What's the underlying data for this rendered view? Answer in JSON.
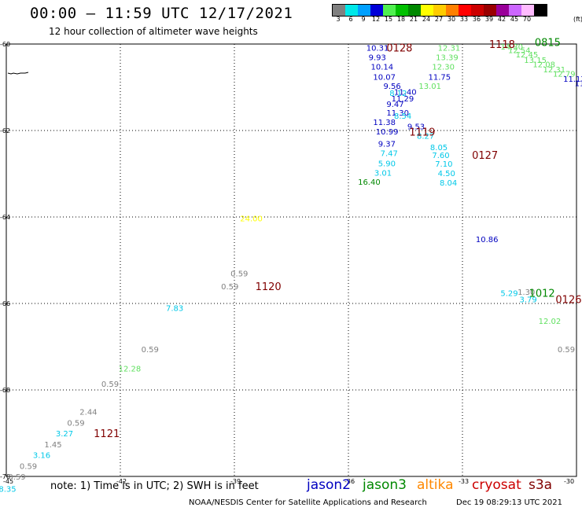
{
  "header": {
    "title": "00:00 — 11:59 UTC 12/17/2021",
    "subtitle": "12 hour collection of altimeter wave heights"
  },
  "legend": {
    "unit": "(ft)",
    "bins": [
      {
        "label": "3",
        "color": "#808080"
      },
      {
        "label": "6",
        "color": "#00e8e8"
      },
      {
        "label": "9",
        "color": "#00a0ff"
      },
      {
        "label": "12",
        "color": "#0000d8"
      },
      {
        "label": "15",
        "color": "#50f050"
      },
      {
        "label": "18",
        "color": "#00c000"
      },
      {
        "label": "21",
        "color": "#008800"
      },
      {
        "label": "24",
        "color": "#ffff00"
      },
      {
        "label": "27",
        "color": "#ffcc00"
      },
      {
        "label": "30",
        "color": "#ff8000"
      },
      {
        "label": "33",
        "color": "#ff0000"
      },
      {
        "label": "36",
        "color": "#cc0000"
      },
      {
        "label": "39",
        "color": "#990000"
      },
      {
        "label": "42",
        "color": "#990099"
      },
      {
        "label": "45",
        "color": "#cc66ff"
      },
      {
        "label": "70",
        "color": "#ffbbff"
      },
      {
        "label": "",
        "color": "#000000"
      }
    ]
  },
  "chart_data": {
    "type": "scatter",
    "title": "00:00 — 11:59 UTC 12/17/2021",
    "subtitle": "12 hour collection of altimeter wave heights",
    "xlim": [
      -45,
      -30
    ],
    "ylim": [
      -70,
      -60
    ],
    "x_ticks": [
      "-45",
      "-42",
      "-39",
      "-36",
      "-33",
      "-30"
    ],
    "y_ticks": [
      "-60",
      "-62",
      "-64",
      "-66",
      "-68",
      "-70"
    ],
    "grid": true,
    "colors": {
      "gray": "#808080",
      "cyan": "#00c8e8",
      "blue": "#0000c0",
      "lightgreen": "#60e060",
      "green": "#008800",
      "yellow": "#ffff00",
      "darkred": "#800000"
    },
    "wave_labels": [
      {
        "text": "10.31",
        "lon": -35.53,
        "lat": -60.08,
        "color": "blue"
      },
      {
        "text": "9.93",
        "lon": -35.47,
        "lat": -60.3,
        "color": "blue"
      },
      {
        "text": "10.14",
        "lon": -35.41,
        "lat": -60.52,
        "color": "blue"
      },
      {
        "text": "10.07",
        "lon": -35.35,
        "lat": -60.75,
        "color": "blue"
      },
      {
        "text": "9.56",
        "lon": -35.08,
        "lat": -60.96,
        "color": "blue"
      },
      {
        "text": "8.12",
        "lon": -34.92,
        "lat": -61.13,
        "color": "cyan"
      },
      {
        "text": "11.40",
        "lon": -34.8,
        "lat": -61.1,
        "color": "blue"
      },
      {
        "text": "11.29",
        "lon": -34.87,
        "lat": -61.25,
        "color": "blue"
      },
      {
        "text": "9.47",
        "lon": -35.0,
        "lat": -61.38,
        "color": "blue"
      },
      {
        "text": "11.30",
        "lon": -35.0,
        "lat": -61.58,
        "color": "blue"
      },
      {
        "text": "8.54",
        "lon": -34.8,
        "lat": -61.65,
        "color": "cyan"
      },
      {
        "text": "11.38",
        "lon": -35.35,
        "lat": -61.8,
        "color": "blue"
      },
      {
        "text": "9.53",
        "lon": -34.45,
        "lat": -61.9,
        "color": "blue"
      },
      {
        "text": "10.99",
        "lon": -35.28,
        "lat": -62.02,
        "color": "blue"
      },
      {
        "text": "8.27",
        "lon": -34.2,
        "lat": -62.12,
        "color": "cyan"
      },
      {
        "text": "9.37",
        "lon": -35.22,
        "lat": -62.3,
        "color": "blue"
      },
      {
        "text": "8.05",
        "lon": -33.85,
        "lat": -62.38,
        "color": "cyan"
      },
      {
        "text": "7.47",
        "lon": -35.16,
        "lat": -62.52,
        "color": "cyan"
      },
      {
        "text": "7.60",
        "lon": -33.8,
        "lat": -62.56,
        "color": "cyan"
      },
      {
        "text": "5.90",
        "lon": -35.22,
        "lat": -62.75,
        "color": "cyan"
      },
      {
        "text": "7.10",
        "lon": -33.72,
        "lat": -62.76,
        "color": "cyan"
      },
      {
        "text": "3.01",
        "lon": -35.32,
        "lat": -62.97,
        "color": "cyan"
      },
      {
        "text": "4.50",
        "lon": -33.65,
        "lat": -62.98,
        "color": "cyan"
      },
      {
        "text": "16.40",
        "lon": -35.75,
        "lat": -63.18,
        "color": "green"
      },
      {
        "text": "8.04",
        "lon": -33.6,
        "lat": -63.2,
        "color": "cyan"
      },
      {
        "text": "12.31",
        "lon": -33.65,
        "lat": -60.08,
        "color": "lightgreen"
      },
      {
        "text": "13.39",
        "lon": -33.7,
        "lat": -60.3,
        "color": "lightgreen"
      },
      {
        "text": "12.30",
        "lon": -33.8,
        "lat": -60.52,
        "color": "lightgreen"
      },
      {
        "text": "11.75",
        "lon": -33.9,
        "lat": -60.75,
        "color": "blue"
      },
      {
        "text": "13.01",
        "lon": -34.15,
        "lat": -60.96,
        "color": "lightgreen"
      },
      {
        "text": "14.30",
        "lon": -32.0,
        "lat": -60.05,
        "color": "lightgreen"
      },
      {
        "text": "12.54",
        "lon": -31.8,
        "lat": -60.14,
        "color": "lightgreen"
      },
      {
        "text": "12.45",
        "lon": -31.6,
        "lat": -60.24,
        "color": "lightgreen"
      },
      {
        "text": "13.15",
        "lon": -31.38,
        "lat": -60.36,
        "color": "lightgreen"
      },
      {
        "text": "12.08",
        "lon": -31.15,
        "lat": -60.46,
        "color": "lightgreen"
      },
      {
        "text": "12.31",
        "lon": -30.88,
        "lat": -60.58,
        "color": "lightgreen"
      },
      {
        "text": "12.79",
        "lon": -30.62,
        "lat": -60.68,
        "color": "lightgreen"
      },
      {
        "text": "11.17",
        "lon": -30.35,
        "lat": -60.8,
        "color": "blue"
      },
      {
        "text": "11",
        "lon": -30.05,
        "lat": -60.9,
        "color": "blue"
      },
      {
        "text": "24.00",
        "lon": -38.85,
        "lat": -64.03,
        "color": "yellow"
      },
      {
        "text": "10.86",
        "lon": -32.65,
        "lat": -64.51,
        "color": "blue"
      },
      {
        "text": "0.59",
        "lon": -39.1,
        "lat": -65.3,
        "color": "gray"
      },
      {
        "text": "0.59",
        "lon": -39.35,
        "lat": -65.6,
        "color": "gray"
      },
      {
        "text": "7.83",
        "lon": -40.8,
        "lat": -66.1,
        "color": "cyan"
      },
      {
        "text": "5.29",
        "lon": -32.0,
        "lat": -65.75,
        "color": "cyan"
      },
      {
        "text": "1.30",
        "lon": -31.55,
        "lat": -65.73,
        "color": "gray"
      },
      {
        "text": "3.79",
        "lon": -31.5,
        "lat": -65.9,
        "color": "cyan"
      },
      {
        "text": "12.02",
        "lon": -31.0,
        "lat": -66.4,
        "color": "lightgreen"
      },
      {
        "text": "0.59",
        "lon": -30.5,
        "lat": -67.05,
        "color": "gray"
      },
      {
        "text": "0.59",
        "lon": -41.45,
        "lat": -67.05,
        "color": "gray"
      },
      {
        "text": "12.28",
        "lon": -42.05,
        "lat": -67.5,
        "color": "lightgreen"
      },
      {
        "text": "0.59",
        "lon": -42.5,
        "lat": -67.85,
        "color": "gray"
      },
      {
        "text": "2.44",
        "lon": -43.07,
        "lat": -68.5,
        "color": "gray"
      },
      {
        "text": "0.59",
        "lon": -43.4,
        "lat": -68.75,
        "color": "gray"
      },
      {
        "text": "3.27",
        "lon": -43.7,
        "lat": -69.0,
        "color": "cyan"
      },
      {
        "text": "1.45",
        "lon": -44.0,
        "lat": -69.25,
        "color": "gray"
      },
      {
        "text": "3.16",
        "lon": -44.3,
        "lat": -69.5,
        "color": "cyan"
      },
      {
        "text": "0.59",
        "lon": -44.65,
        "lat": -69.75,
        "color": "gray"
      },
      {
        "text": "0.59",
        "lon": -44.95,
        "lat": -70.0,
        "color": "gray"
      },
      {
        "text": "8.35",
        "lon": -45.2,
        "lat": -70.28,
        "color": "cyan"
      }
    ],
    "time_labels": [
      {
        "text": "0128",
        "lon": -35.0,
        "lat": -60.08,
        "color": "darkred"
      },
      {
        "text": "1118",
        "lon": -32.3,
        "lat": -60.0,
        "color": "darkred"
      },
      {
        "text": "0815",
        "lon": -31.1,
        "lat": -59.95,
        "color": "green"
      },
      {
        "text": "1119",
        "lon": -34.4,
        "lat": -62.03,
        "color": "darkred"
      },
      {
        "text": "0127",
        "lon": -32.75,
        "lat": -62.56,
        "color": "darkred"
      },
      {
        "text": "1120",
        "lon": -38.45,
        "lat": -65.6,
        "color": "darkred"
      },
      {
        "text": "0126",
        "lon": -30.55,
        "lat": -65.9,
        "color": "darkred"
      },
      {
        "text": "1012",
        "lon": -31.25,
        "lat": -65.75,
        "color": "green"
      },
      {
        "text": "1121",
        "lon": -42.7,
        "lat": -69.0,
        "color": "darkred"
      }
    ]
  },
  "footer": {
    "note": "note: 1) Time is in UTC; 2) SWH is in feet",
    "satellites": [
      {
        "label": "jason2",
        "color": "#0000c0"
      },
      {
        "label": "jason3",
        "color": "#008800"
      },
      {
        "label": "altika",
        "color": "#ff8800"
      },
      {
        "label": "cryosat",
        "color": "#cc0000"
      },
      {
        "label": "s3a",
        "color": "#800000"
      }
    ],
    "org": "NOAA/NESDIS Center for Satellite Applications and Research",
    "timestamp": "Dec 19 08:29:13 UTC 2021"
  }
}
